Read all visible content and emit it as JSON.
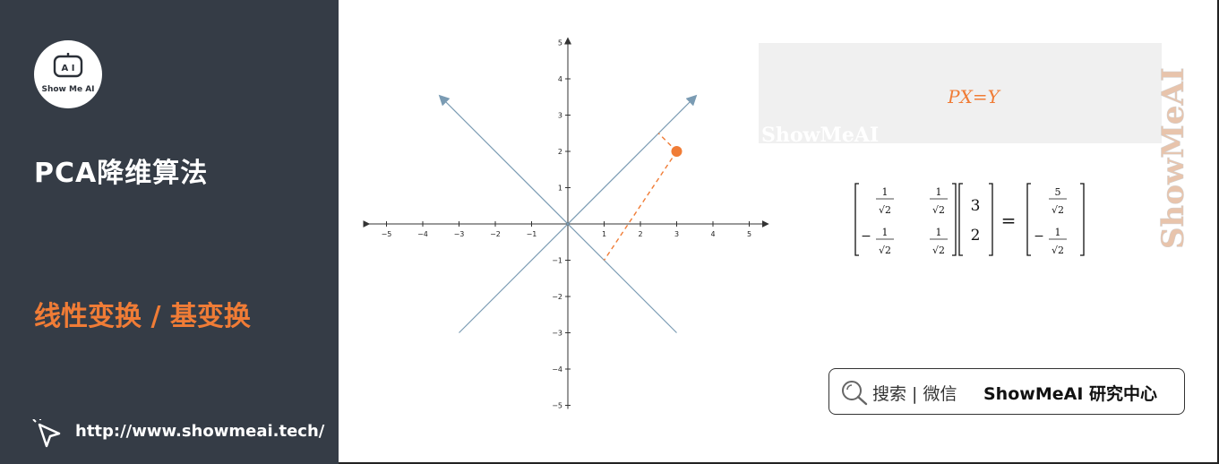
{
  "sidebar": {
    "logo_text": "Show Me AI",
    "title": "PCA降维算法",
    "subtitle": "线性变换 / 基变换",
    "url": "http://www.showmeai.tech/"
  },
  "graph": {
    "x_ticks": [
      "−5",
      "−4",
      "−3",
      "−2",
      "−1",
      "1",
      "2",
      "3",
      "4",
      "5"
    ],
    "y_ticks": [
      "5",
      "4",
      "3",
      "2",
      "1",
      "−1",
      "−2",
      "−3",
      "−4",
      "−5"
    ],
    "point": [
      3,
      2
    ],
    "colors": {
      "axis": "#333333",
      "diag": "#7a9bb3",
      "point": "#f07c36"
    }
  },
  "equation": {
    "text": "PX=Y",
    "watermark": "ShowMeAI",
    "vertical_watermark": "ShowMeAI"
  },
  "matrix": {
    "m11": "1",
    "m12": "1",
    "m21": "1",
    "m22": "1",
    "sqrt": "√2",
    "vec1": "3",
    "vec2": "2",
    "r1": "5",
    "r2": "1",
    "equals": "=",
    "minus": "−"
  },
  "search": {
    "label": "搜索 | 微信",
    "brand": "ShowMeAI 研究中心"
  },
  "colors": {
    "accent": "#f07c36",
    "sidebar_bg": "#353c46"
  }
}
